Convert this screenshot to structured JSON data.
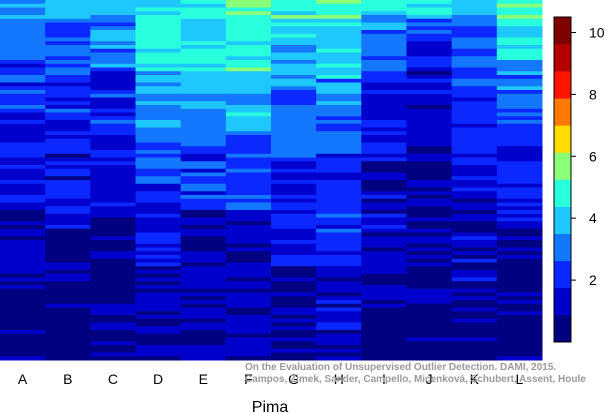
{
  "chart_data": {
    "type": "heatmap",
    "title": "",
    "xlabel": "Pima",
    "ylabel": "",
    "columns": [
      "A",
      "B",
      "C",
      "D",
      "E",
      "F",
      "G",
      "H",
      "I",
      "J",
      "K",
      "L"
    ],
    "n_rows": 96,
    "colorbar": {
      "range": [
        0,
        10.5
      ],
      "ticks": [
        2,
        4,
        6,
        8,
        10
      ],
      "levels": 11,
      "colors": [
        "#000080",
        "#0000cc",
        "#0a28ff",
        "#1478ff",
        "#1ec8ff",
        "#28ffdc",
        "#8cff78",
        "#ffdc00",
        "#ff7800",
        "#ff1400",
        "#b40000",
        "#800000"
      ]
    },
    "column_bands": {
      "A": [
        [
          0,
          4,
          3.6
        ],
        [
          5,
          15,
          3.0
        ],
        [
          16,
          28,
          2.2
        ],
        [
          29,
          55,
          1.7
        ],
        [
          56,
          76,
          1.0
        ],
        [
          77,
          96,
          0.3
        ]
      ],
      "B": [
        [
          0,
          5,
          3.5
        ],
        [
          6,
          20,
          2.9
        ],
        [
          21,
          40,
          2.0
        ],
        [
          41,
          60,
          1.5
        ],
        [
          61,
          96,
          0.4
        ]
      ],
      "C": [
        [
          0,
          3,
          4.0
        ],
        [
          4,
          18,
          3.1
        ],
        [
          19,
          35,
          2.1
        ],
        [
          36,
          58,
          1.5
        ],
        [
          59,
          96,
          0.4
        ]
      ],
      "D": [
        [
          0,
          4,
          4.2
        ],
        [
          5,
          18,
          4.6
        ],
        [
          19,
          35,
          3.6
        ],
        [
          36,
          48,
          2.8
        ],
        [
          49,
          70,
          1.6
        ],
        [
          71,
          96,
          0.6
        ]
      ],
      "E": [
        [
          0,
          4,
          5.0
        ],
        [
          5,
          18,
          4.4
        ],
        [
          19,
          38,
          3.4
        ],
        [
          39,
          55,
          2.3
        ],
        [
          56,
          96,
          0.8
        ]
      ],
      "F": [
        [
          0,
          4,
          5.2
        ],
        [
          5,
          18,
          4.7
        ],
        [
          19,
          35,
          3.9
        ],
        [
          36,
          55,
          2.5
        ],
        [
          56,
          96,
          0.9
        ]
      ],
      "G": [
        [
          0,
          4,
          5.0
        ],
        [
          5,
          22,
          3.8
        ],
        [
          23,
          42,
          2.8
        ],
        [
          43,
          70,
          1.6
        ],
        [
          71,
          96,
          0.6
        ]
      ],
      "H": [
        [
          0,
          4,
          5.2
        ],
        [
          5,
          20,
          4.3
        ],
        [
          21,
          40,
          3.2
        ],
        [
          41,
          70,
          2.0
        ],
        [
          71,
          96,
          1.2
        ]
      ],
      "I": [
        [
          0,
          3,
          4.8
        ],
        [
          4,
          18,
          3.2
        ],
        [
          19,
          40,
          1.8
        ],
        [
          41,
          70,
          1.2
        ],
        [
          71,
          96,
          0.7
        ]
      ],
      "J": [
        [
          0,
          4,
          4.0
        ],
        [
          5,
          18,
          2.2
        ],
        [
          19,
          40,
          1.2
        ],
        [
          41,
          70,
          0.8
        ],
        [
          71,
          96,
          0.6
        ]
      ],
      "K": [
        [
          0,
          4,
          3.4
        ],
        [
          5,
          25,
          2.5
        ],
        [
          26,
          50,
          1.8
        ],
        [
          51,
          75,
          1.2
        ],
        [
          76,
          96,
          0.5
        ]
      ],
      "L": [
        [
          0,
          4,
          5.2
        ],
        [
          5,
          15,
          4.2
        ],
        [
          16,
          35,
          3.0
        ],
        [
          36,
          60,
          1.8
        ],
        [
          61,
          96,
          0.5
        ]
      ]
    }
  },
  "credit": {
    "line1": "On the Evaluation of Unsupervised Outlier Detection. DAMI, 2015.",
    "line2": "Campos, Zimek, Sander, Campello, Micenková, Schubert, Assent, Houle"
  }
}
